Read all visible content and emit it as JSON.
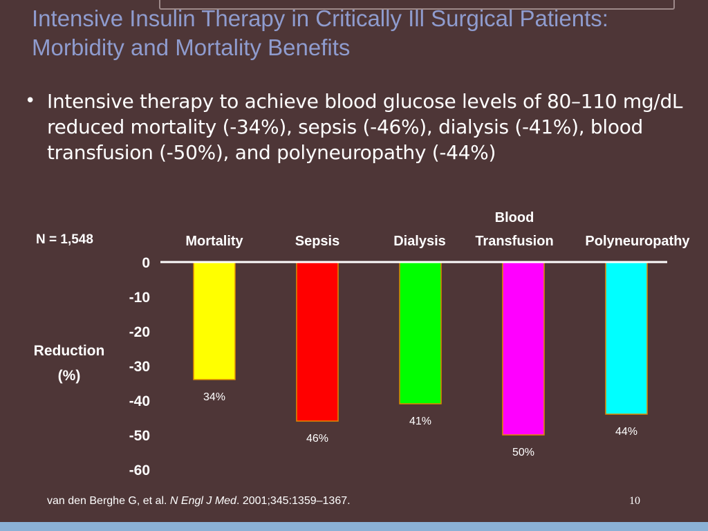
{
  "slide": {
    "title": "Intensive Insulin Therapy in Critically Ill Surgical Patients: Morbidity and Mortality Benefits",
    "bullet": "Intensive therapy to achieve blood glucose levels of 80–110 mg/dL reduced mortality (-34%), sepsis (-46%), dialysis (-41%), blood transfusion (-50%), and polyneuropathy (-44%)",
    "n_label": "N = 1,548",
    "ylabel_line1": "Reduction",
    "ylabel_line2": "(%)",
    "citation_authors": "van den Berghe G, et al.",
    "citation_journal": "N Engl J Med",
    "citation_rest": ". 2001;345:1359–1367.",
    "slide_number": "10"
  },
  "chart_data": {
    "type": "bar",
    "categories": [
      "Mortality",
      "Sepsis",
      "Dialysis",
      "Blood Transfusion",
      "Polyneuropathy"
    ],
    "category_lines": [
      [
        "Mortality"
      ],
      [
        "Sepsis"
      ],
      [
        "Dialysis"
      ],
      [
        "Blood",
        "Transfusion"
      ],
      [
        "Polyneuropathy"
      ]
    ],
    "values": [
      -34,
      -46,
      -41,
      -50,
      -44
    ],
    "data_labels": [
      "34%",
      "46%",
      "41%",
      "50%",
      "44%"
    ],
    "colors": [
      "#ffff00",
      "#ff0000",
      "#00ff00",
      "#ff00ff",
      "#00ffff"
    ],
    "bar_edge_color": "#e08a00",
    "ylabel": "Reduction (%)",
    "ylim": [
      -60,
      0
    ],
    "yticks": [
      "0",
      "-10",
      "-20",
      "-30",
      "-40",
      "-50",
      "-60"
    ],
    "ytick_values": [
      0,
      -10,
      -20,
      -30,
      -40,
      -50,
      -60
    ],
    "grid": false,
    "legend": "none"
  }
}
